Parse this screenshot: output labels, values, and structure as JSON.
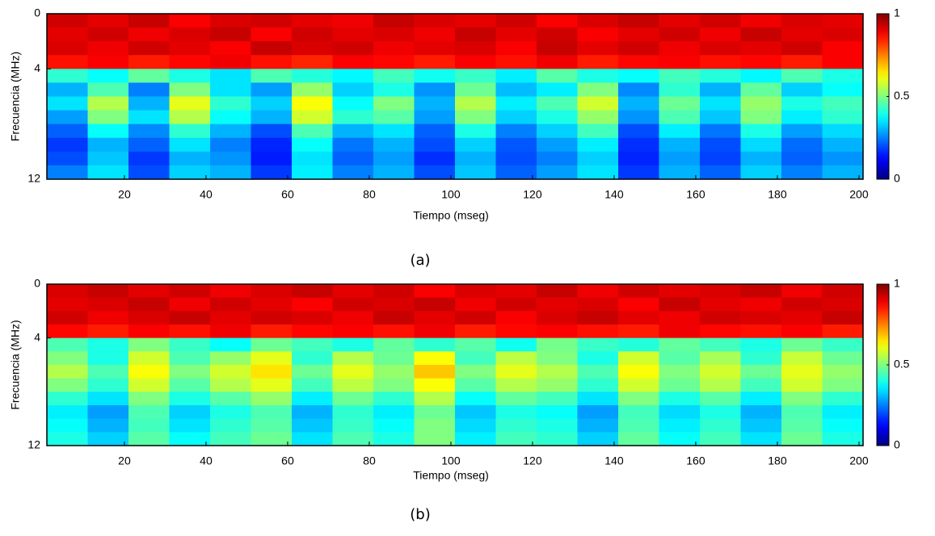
{
  "chart_data": [
    {
      "type": "heatmap",
      "caption": "(a)",
      "xlabel": "Tiempo (mseg)",
      "ylabel": "Frecuencia (MHz)",
      "xlim": [
        1,
        201
      ],
      "xticks": [
        20,
        40,
        60,
        80,
        100,
        120,
        140,
        160,
        180,
        200
      ],
      "ylim": [
        0,
        12
      ],
      "yticks": [
        0,
        4,
        12
      ],
      "y_reversed": true,
      "colormap": "jet",
      "clim": [
        0,
        1
      ],
      "cticks": [
        0,
        0.5,
        1
      ],
      "z": [
        [
          0.92,
          0.9,
          0.93,
          0.88,
          0.91,
          0.92,
          0.9,
          0.89,
          0.93,
          0.91,
          0.9,
          0.92,
          0.88,
          0.91,
          0.93,
          0.9,
          0.92,
          0.89,
          0.91,
          0.9
        ],
        [
          0.9,
          0.92,
          0.89,
          0.91,
          0.93,
          0.88,
          0.92,
          0.9,
          0.91,
          0.89,
          0.93,
          0.9,
          0.92,
          0.88,
          0.9,
          0.92,
          0.89,
          0.93,
          0.9,
          0.91
        ],
        [
          0.91,
          0.89,
          0.92,
          0.9,
          0.88,
          0.93,
          0.91,
          0.92,
          0.89,
          0.9,
          0.91,
          0.88,
          0.93,
          0.9,
          0.92,
          0.89,
          0.91,
          0.9,
          0.92,
          0.88
        ],
        [
          0.86,
          0.88,
          0.85,
          0.87,
          0.89,
          0.86,
          0.84,
          0.88,
          0.87,
          0.85,
          0.88,
          0.86,
          0.89,
          0.85,
          0.87,
          0.88,
          0.86,
          0.87,
          0.85,
          0.88
        ],
        [
          0.42,
          0.38,
          0.47,
          0.4,
          0.35,
          0.45,
          0.41,
          0.37,
          0.44,
          0.39,
          0.43,
          0.36,
          0.46,
          0.4,
          0.38,
          0.44,
          0.41,
          0.37,
          0.45,
          0.4
        ],
        [
          0.3,
          0.45,
          0.25,
          0.5,
          0.35,
          0.28,
          0.52,
          0.33,
          0.4,
          0.27,
          0.48,
          0.31,
          0.36,
          0.5,
          0.26,
          0.42,
          0.3,
          0.47,
          0.33,
          0.38
        ],
        [
          0.35,
          0.55,
          0.3,
          0.6,
          0.42,
          0.33,
          0.62,
          0.38,
          0.5,
          0.3,
          0.55,
          0.36,
          0.45,
          0.58,
          0.3,
          0.48,
          0.35,
          0.52,
          0.4,
          0.44
        ],
        [
          0.28,
          0.5,
          0.35,
          0.55,
          0.38,
          0.3,
          0.58,
          0.42,
          0.46,
          0.28,
          0.5,
          0.33,
          0.4,
          0.52,
          0.27,
          0.45,
          0.32,
          0.5,
          0.36,
          0.42
        ],
        [
          0.22,
          0.38,
          0.26,
          0.42,
          0.3,
          0.2,
          0.45,
          0.3,
          0.35,
          0.22,
          0.4,
          0.25,
          0.33,
          0.44,
          0.2,
          0.36,
          0.24,
          0.4,
          0.28,
          0.34
        ],
        [
          0.18,
          0.3,
          0.22,
          0.35,
          0.25,
          0.16,
          0.38,
          0.24,
          0.3,
          0.2,
          0.33,
          0.21,
          0.28,
          0.36,
          0.17,
          0.3,
          0.2,
          0.34,
          0.23,
          0.3
        ],
        [
          0.2,
          0.32,
          0.18,
          0.3,
          0.27,
          0.15,
          0.35,
          0.22,
          0.28,
          0.17,
          0.3,
          0.2,
          0.25,
          0.33,
          0.16,
          0.28,
          0.19,
          0.3,
          0.22,
          0.27
        ],
        [
          0.25,
          0.35,
          0.2,
          0.33,
          0.3,
          0.18,
          0.36,
          0.25,
          0.3,
          0.2,
          0.32,
          0.22,
          0.28,
          0.35,
          0.18,
          0.3,
          0.22,
          0.33,
          0.25,
          0.3
        ]
      ]
    },
    {
      "type": "heatmap",
      "caption": "(b)",
      "xlabel": "Tiempo (mseg)",
      "ylabel": "Frecuencia (MHz)",
      "xlim": [
        1,
        201
      ],
      "xticks": [
        20,
        40,
        60,
        80,
        100,
        120,
        140,
        160,
        180,
        200
      ],
      "ylim": [
        0,
        12
      ],
      "yticks": [
        0,
        4,
        12
      ],
      "y_reversed": true,
      "colormap": "jet",
      "clim": [
        0,
        1
      ],
      "cticks": [
        0,
        0.5,
        1
      ],
      "z": [
        [
          0.91,
          0.93,
          0.9,
          0.92,
          0.89,
          0.91,
          0.93,
          0.9,
          0.92,
          0.88,
          0.91,
          0.9,
          0.93,
          0.89,
          0.92,
          0.9,
          0.91,
          0.93,
          0.89,
          0.92
        ],
        [
          0.9,
          0.91,
          0.93,
          0.89,
          0.92,
          0.9,
          0.88,
          0.92,
          0.91,
          0.93,
          0.89,
          0.92,
          0.9,
          0.91,
          0.88,
          0.93,
          0.9,
          0.89,
          0.92,
          0.91
        ],
        [
          0.92,
          0.89,
          0.91,
          0.93,
          0.9,
          0.92,
          0.91,
          0.89,
          0.93,
          0.9,
          0.92,
          0.88,
          0.91,
          0.93,
          0.9,
          0.89,
          0.92,
          0.91,
          0.9,
          0.93
        ],
        [
          0.87,
          0.85,
          0.88,
          0.86,
          0.89,
          0.85,
          0.87,
          0.88,
          0.86,
          0.89,
          0.85,
          0.87,
          0.88,
          0.86,
          0.85,
          0.89,
          0.87,
          0.86,
          0.88,
          0.85
        ],
        [
          0.45,
          0.4,
          0.5,
          0.43,
          0.38,
          0.48,
          0.44,
          0.4,
          0.47,
          0.42,
          0.46,
          0.39,
          0.49,
          0.43,
          0.41,
          0.47,
          0.44,
          0.4,
          0.48,
          0.43
        ],
        [
          0.5,
          0.4,
          0.58,
          0.45,
          0.52,
          0.6,
          0.42,
          0.55,
          0.48,
          0.62,
          0.44,
          0.56,
          0.5,
          0.4,
          0.58,
          0.46,
          0.54,
          0.42,
          0.57,
          0.48
        ],
        [
          0.55,
          0.45,
          0.62,
          0.5,
          0.58,
          0.65,
          0.48,
          0.6,
          0.52,
          0.68,
          0.5,
          0.6,
          0.55,
          0.45,
          0.62,
          0.5,
          0.58,
          0.48,
          0.6,
          0.52
        ],
        [
          0.5,
          0.42,
          0.58,
          0.46,
          0.55,
          0.6,
          0.44,
          0.56,
          0.5,
          0.62,
          0.46,
          0.55,
          0.52,
          0.42,
          0.58,
          0.48,
          0.55,
          0.44,
          0.58,
          0.5
        ],
        [
          0.42,
          0.35,
          0.5,
          0.4,
          0.46,
          0.52,
          0.36,
          0.48,
          0.42,
          0.55,
          0.38,
          0.47,
          0.44,
          0.35,
          0.5,
          0.4,
          0.46,
          0.36,
          0.5,
          0.42
        ],
        [
          0.36,
          0.28,
          0.45,
          0.33,
          0.4,
          0.45,
          0.3,
          0.42,
          0.36,
          0.48,
          0.32,
          0.4,
          0.38,
          0.28,
          0.44,
          0.34,
          0.4,
          0.3,
          0.45,
          0.36
        ],
        [
          0.38,
          0.3,
          0.44,
          0.35,
          0.42,
          0.46,
          0.32,
          0.43,
          0.38,
          0.5,
          0.34,
          0.42,
          0.4,
          0.3,
          0.45,
          0.36,
          0.42,
          0.32,
          0.46,
          0.38
        ],
        [
          0.4,
          0.33,
          0.46,
          0.38,
          0.44,
          0.48,
          0.35,
          0.45,
          0.4,
          0.5,
          0.36,
          0.44,
          0.42,
          0.33,
          0.47,
          0.38,
          0.44,
          0.35,
          0.48,
          0.4
        ]
      ]
    }
  ]
}
